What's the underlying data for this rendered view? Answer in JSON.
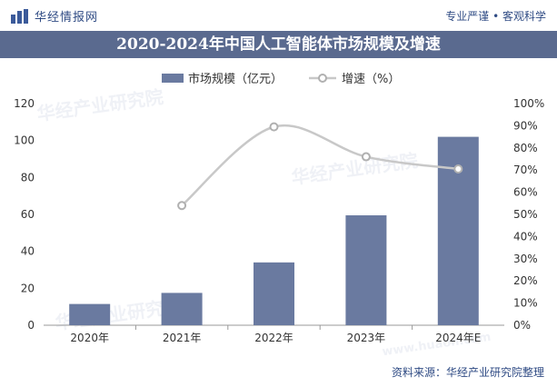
{
  "header": {
    "brand": "华经情报网",
    "slogan": "专业严谨 • 客观科学"
  },
  "colors": {
    "bar": "#6a7aa0",
    "line": "#c8c8c8",
    "title_band": "#5a6a8f",
    "brand": "#2f4b84"
  },
  "watermarks": [
    "华经产业研究院",
    "华经产业研究院",
    "华经产业研究院",
    "www.huaon.com"
  ],
  "chart_data": {
    "type": "bar",
    "title": "2020-2024年中国人工智能体市场规模及增速",
    "categories": [
      "2020年",
      "2021年",
      "2022年",
      "2023年",
      "2024年E"
    ],
    "series": [
      {
        "name": "市场规模（亿元）",
        "type": "bar",
        "axis": "left",
        "values": [
          11.5,
          17.5,
          34,
          59.5,
          102
        ]
      },
      {
        "name": "增速（%）",
        "type": "line",
        "axis": "right",
        "values": [
          null,
          54,
          89.5,
          76,
          70.5
        ]
      }
    ],
    "y_left": {
      "min": 0,
      "max": 120,
      "ticks": [
        "0",
        "20",
        "40",
        "60",
        "80",
        "100",
        "120"
      ]
    },
    "y_right": {
      "min": 0,
      "max": 100,
      "ticks": [
        "0%",
        "10%",
        "20%",
        "30%",
        "40%",
        "50%",
        "60%",
        "70%",
        "80%",
        "90%",
        "100%"
      ]
    },
    "legend": "top-center",
    "grid": false
  },
  "footer": {
    "source": "资料来源：华经产业研究院整理"
  }
}
